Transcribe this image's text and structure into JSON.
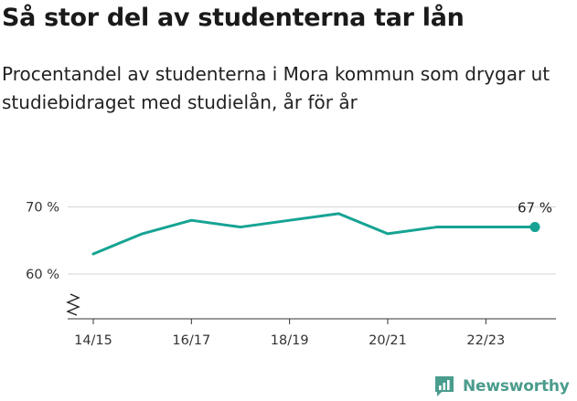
{
  "header": {
    "title": "Så stor del av studenterna tar lån",
    "subtitle": "Procentandel av studenterna i Mora kommun som drygar ut studiebidraget med studielån, år för år"
  },
  "brand": {
    "name": "Newsworthy",
    "icon": "newsworthy-logo-icon"
  },
  "colors": {
    "line": "#16a393",
    "grid": "#d6d6d6",
    "brand": "#4a9c8c"
  },
  "chart_data": {
    "type": "line",
    "x": [
      "14/15",
      "15/16",
      "16/17",
      "17/18",
      "18/19",
      "19/20",
      "20/21",
      "21/22",
      "22/23",
      "23/24"
    ],
    "series": [
      {
        "values": [
          63,
          66,
          68,
          67,
          68,
          69,
          66,
          67,
          67,
          67
        ]
      }
    ],
    "x_tick_labels": [
      "14/15",
      "16/17",
      "18/19",
      "20/21",
      "22/23"
    ],
    "y_ticks": [
      60,
      70
    ],
    "y_tick_labels": [
      "60 %",
      "70 %"
    ],
    "end_label": "67 %",
    "axis_break": true,
    "grid": true
  }
}
